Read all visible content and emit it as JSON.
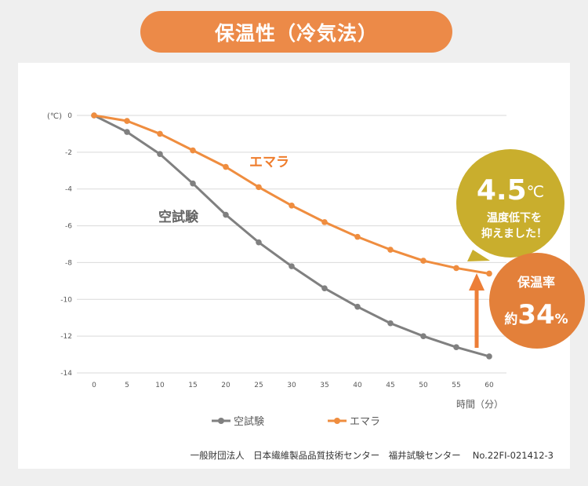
{
  "title": "保温性（冷気法）",
  "chart_data": {
    "type": "line",
    "ylabel": "(℃)",
    "xlabel": "時間（分）",
    "x": [
      0,
      5,
      10,
      15,
      20,
      25,
      30,
      35,
      40,
      45,
      50,
      55,
      60
    ],
    "xlim": [
      0,
      60
    ],
    "ylim": [
      -14,
      0
    ],
    "yticks": [
      0,
      -2,
      -4,
      -6,
      -8,
      -10,
      -12,
      -14
    ],
    "grid": true,
    "series": [
      {
        "name": "空試験",
        "color": "#808080",
        "values": [
          0,
          -0.9,
          -2.1,
          -3.7,
          -5.4,
          -6.9,
          -8.2,
          -9.4,
          -10.4,
          -11.3,
          -12.0,
          -12.6,
          -13.1
        ]
      },
      {
        "name": "エマラ",
        "color": "#ef8d3f",
        "values": [
          0,
          -0.3,
          -1.0,
          -1.9,
          -2.8,
          -3.9,
          -4.9,
          -5.8,
          -6.6,
          -7.3,
          -7.9,
          -8.3,
          -8.6
        ]
      }
    ],
    "legend": "bottom",
    "annotations": {
      "series_label_emara": "エマラ",
      "series_label_blank": "空試験",
      "bubble_value": "4.5",
      "bubble_unit": "℃",
      "bubble_line1": "温度低下を",
      "bubble_line2": "抑えました！",
      "badge_title": "保温率",
      "badge_prefix": "約",
      "badge_value": "34",
      "badge_unit": "%",
      "bubble_color": "#c9ae2d",
      "badge_color": "#e3803a"
    }
  },
  "source": "一般財団法人　日本繊維製品品質技術センター　福井試験センター　 No.22FI-021412-3"
}
